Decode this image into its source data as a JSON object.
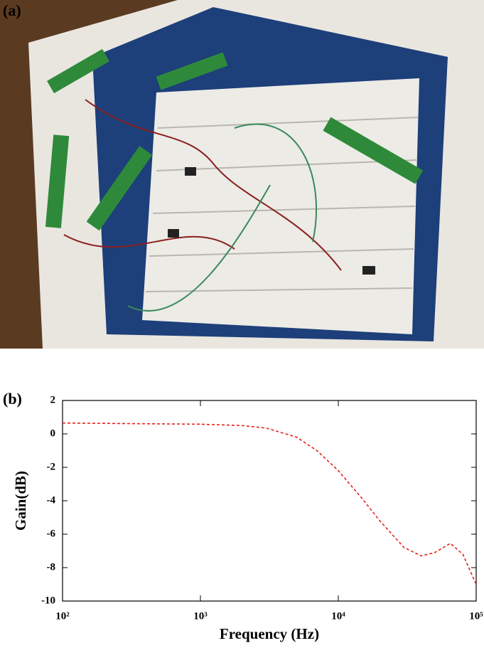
{
  "panel_a": {
    "label": "(a)"
  },
  "chart_data": {
    "type": "line",
    "panel_label": "(b)",
    "xlabel": "Frequency (Hz)",
    "ylabel": "Gain(dB)",
    "x": [
      100,
      200,
      500,
      1000,
      2000,
      3000,
      5000,
      7000,
      10000,
      15000,
      20000,
      30000,
      40000,
      50000,
      65000,
      80000,
      100000
    ],
    "series": [
      {
        "color": "#e8201c",
        "dash": "dashed",
        "values": [
          0.65,
          0.63,
          0.6,
          0.58,
          0.5,
          0.35,
          -0.2,
          -1.0,
          -2.2,
          -3.9,
          -5.2,
          -6.8,
          -7.3,
          -7.1,
          -6.55,
          -7.2,
          -9.0
        ]
      }
    ],
    "xscale": "log",
    "xlim": [
      100,
      100000
    ],
    "xticks": [
      {
        "value": 100,
        "label": "10²"
      },
      {
        "value": 1000,
        "label": "10³"
      },
      {
        "value": 10000,
        "label": "10⁴"
      },
      {
        "value": 100000,
        "label": "10⁵"
      }
    ],
    "ylim": [
      -10,
      2
    ],
    "yticks": [
      -10,
      -8,
      -6,
      -4,
      -2,
      0,
      2
    ]
  }
}
